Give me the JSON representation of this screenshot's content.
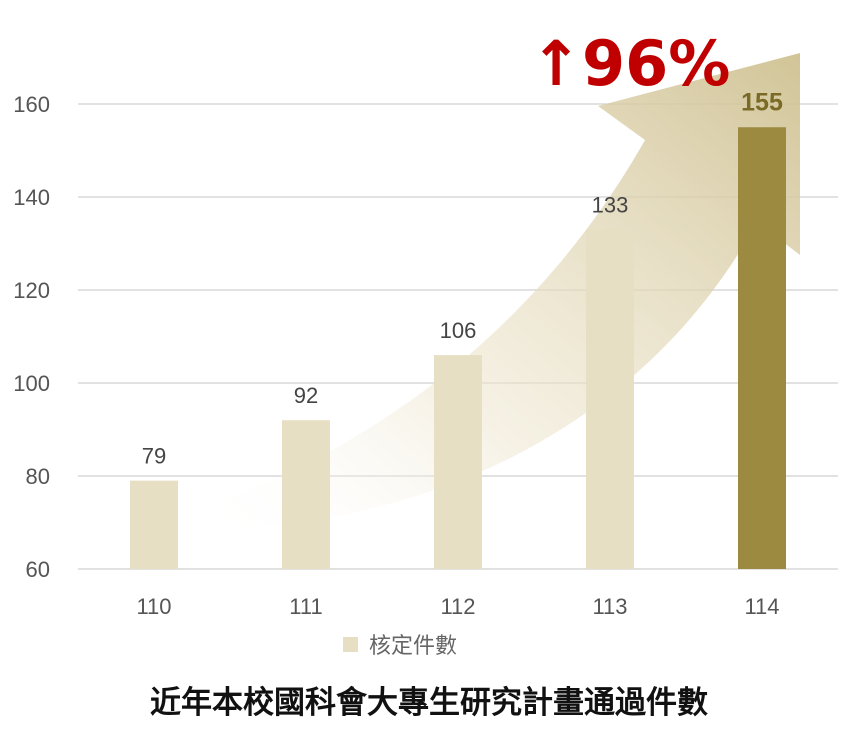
{
  "chart_data": {
    "type": "bar",
    "title": "近年本校國科會大專生研究計畫通過件數",
    "categories": [
      "110",
      "111",
      "112",
      "113",
      "114"
    ],
    "series": [
      {
        "name": "核定件數",
        "values": [
          79,
          92,
          106,
          133,
          155
        ]
      }
    ],
    "ylim": [
      60,
      170
    ],
    "yticks": [
      60,
      80,
      100,
      120,
      140,
      160
    ],
    "grid": true,
    "legend": "bottom",
    "highlight_category": "114",
    "annotation": "↑96%",
    "colors": {
      "bar": "#e7dfc3",
      "highlight_bar": "#9b8a40",
      "highlight_label": "#7a6a26",
      "annotation": "#c00000",
      "arrow": "#d6c9a0",
      "grid": "#d9d9d9"
    }
  }
}
